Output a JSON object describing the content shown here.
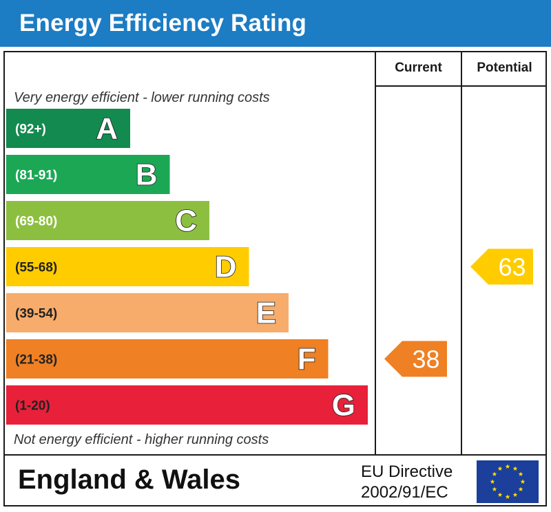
{
  "header": {
    "title": "Energy Efficiency Rating"
  },
  "columns": {
    "current": "Current",
    "potential": "Potential"
  },
  "captions": {
    "top": "Very energy efficient - lower running costs",
    "bottom": "Not energy efficient - higher running costs"
  },
  "chart_data": {
    "type": "bar",
    "title": "Energy Efficiency Rating",
    "categories": [
      "A",
      "B",
      "C",
      "D",
      "E",
      "F",
      "G"
    ],
    "ranges": [
      "(92+)",
      "(81-91)",
      "(69-80)",
      "(55-68)",
      "(39-54)",
      "(21-38)",
      "(1-20)"
    ],
    "colors": [
      "#138a4f",
      "#1ca755",
      "#8cbf3f",
      "#ffcc00",
      "#f7ac6b",
      "#ef8023",
      "#e8203a"
    ],
    "current": {
      "value": 38,
      "band": "F",
      "color": "#ef8023"
    },
    "potential": {
      "value": 63,
      "band": "D",
      "color": "#ffcc00"
    }
  },
  "footer": {
    "region": "England & Wales",
    "directive_line1": "EU Directive",
    "directive_line2": "2002/91/EC",
    "flag_colors": {
      "field": "#1b3f9a",
      "stars": "#ffdd00"
    }
  }
}
